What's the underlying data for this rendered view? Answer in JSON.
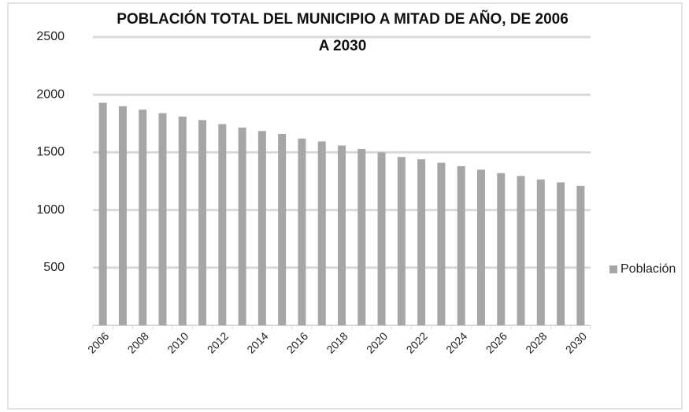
{
  "chart_data": {
    "type": "bar",
    "title": "POBLACIÓN TOTAL DEL MUNICIPIO A MITAD DE AÑO, DE 2006 A 2030",
    "categories": [
      "2006",
      null,
      "2008",
      null,
      "2010",
      null,
      "2012",
      null,
      "2014",
      null,
      "2016",
      null,
      "2018",
      null,
      "2020",
      null,
      "2022",
      null,
      "2024",
      null,
      "2026",
      null,
      "2028",
      null,
      "2030"
    ],
    "series": [
      {
        "name": "Población",
        "color": "#a6a6a6",
        "values": [
          1930,
          1900,
          1870,
          1840,
          1810,
          1780,
          1745,
          1715,
          1685,
          1660,
          1620,
          1595,
          1560,
          1530,
          1500,
          1460,
          1440,
          1410,
          1380,
          1350,
          1320,
          1295,
          1265,
          1240,
          1210
        ]
      }
    ],
    "ylim": [
      0,
      2500
    ],
    "yticks": [
      500,
      1000,
      1500,
      2000,
      2500
    ],
    "grid": true,
    "legend": "right"
  }
}
